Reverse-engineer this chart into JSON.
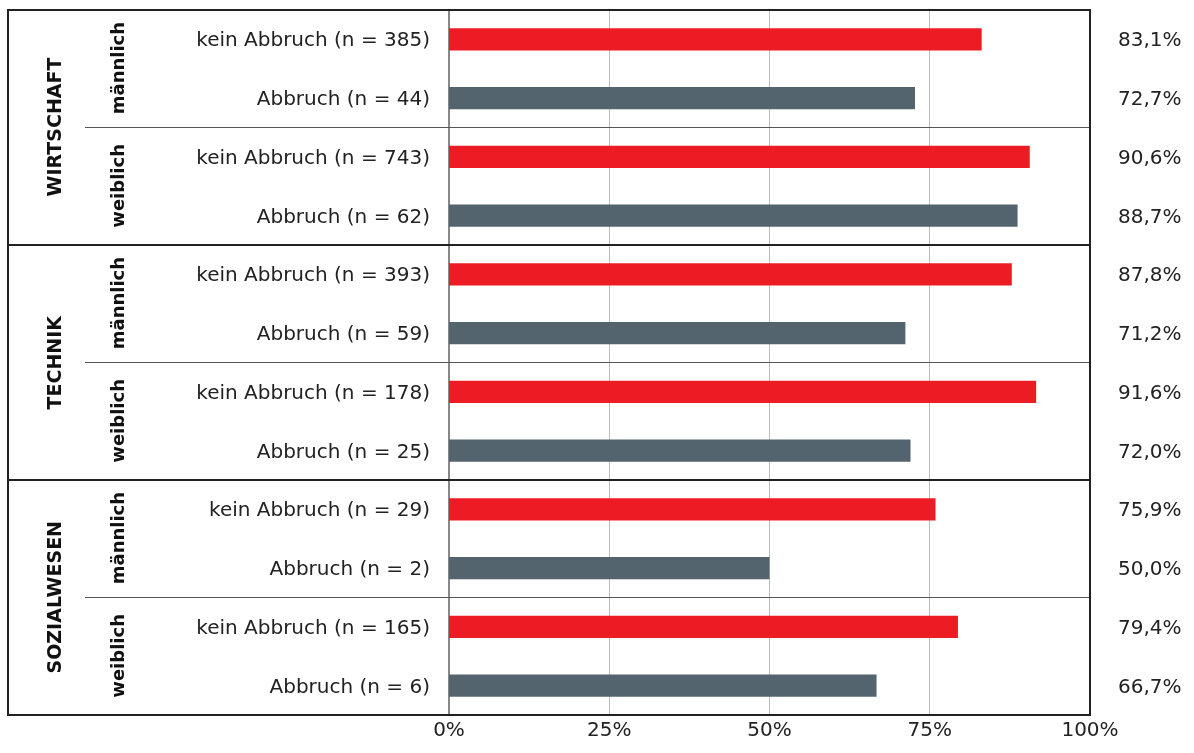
{
  "chart_data": {
    "type": "bar",
    "orientation": "horizontal",
    "categories": [
      "kein Abbruch (n = 385)",
      "Abbruch (n = 44)",
      "kein Abbruch (n = 743)",
      "Abbruch (n = 62)",
      "kein Abbruch (n = 393)",
      "Abbruch (n = 59)",
      "kein Abbruch (n = 178)",
      "Abbruch (n = 25)",
      "kein Abbruch (n = 29)",
      "Abbruch (n = 2)",
      "kein Abbruch (n = 165)",
      "Abbruch (n = 6)"
    ],
    "values": [
      83.1,
      72.7,
      90.6,
      88.7,
      87.8,
      71.2,
      91.6,
      72.0,
      75.9,
      50.0,
      79.4,
      66.7
    ],
    "value_labels": [
      "83,1%",
      "72,7%",
      "90,6%",
      "88,7%",
      "87,8%",
      "71,2%",
      "91,6%",
      "72,0%",
      "75,9%",
      "50,0%",
      "79,4%",
      "66,7%"
    ],
    "colors": [
      "#ed1c24",
      "#53646e",
      "#ed1c24",
      "#53646e",
      "#ed1c24",
      "#53646e",
      "#ed1c24",
      "#53646e",
      "#ed1c24",
      "#53646e",
      "#ed1c24",
      "#53646e"
    ],
    "annotations": [
      "WIRTSCHAFT",
      "TECHNIK",
      "SOZIALWESEN",
      "männlich",
      "weiblich",
      "männlich",
      "weiblich",
      "männlich",
      "weiblich"
    ],
    "xlim": [
      0,
      100
    ],
    "xticks": [
      {
        "value": 0,
        "label": "0%"
      },
      {
        "value": 25,
        "label": "25%"
      },
      {
        "value": 50,
        "label": "50%"
      },
      {
        "value": 75,
        "label": "75%"
      },
      {
        "value": 100,
        "label": "100%"
      }
    ],
    "grid": "x",
    "legend": false
  }
}
